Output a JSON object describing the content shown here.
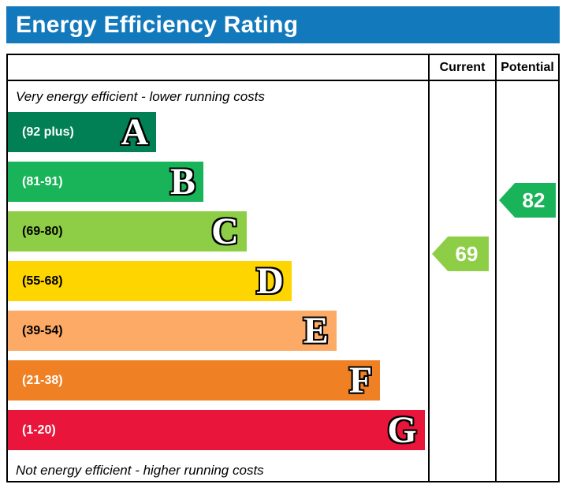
{
  "chart_data": {
    "type": "bar",
    "title": "Energy Efficiency Rating",
    "top_caption": "Very energy efficient - lower running costs",
    "bottom_caption": "Not energy efficient - higher running costs",
    "columns": [
      "Current",
      "Potential"
    ],
    "header_color": "#1279bd",
    "bands": [
      {
        "letter": "A",
        "range": "(92 plus)",
        "min": 92,
        "max": 100,
        "color": "#008054",
        "label_color": "#ffffff",
        "width_pct": 35.3
      },
      {
        "letter": "B",
        "range": "(81-91)",
        "min": 81,
        "max": 91,
        "color": "#19b459",
        "label_color": "#ffffff",
        "width_pct": 46.5
      },
      {
        "letter": "C",
        "range": "(69-80)",
        "min": 69,
        "max": 80,
        "color": "#8dce46",
        "label_color": "#000000",
        "width_pct": 56.8
      },
      {
        "letter": "D",
        "range": "(55-68)",
        "min": 55,
        "max": 68,
        "color": "#ffd500",
        "label_color": "#000000",
        "width_pct": 67.5
      },
      {
        "letter": "E",
        "range": "(39-54)",
        "min": 39,
        "max": 54,
        "color": "#fcaa65",
        "label_color": "#000000",
        "width_pct": 78.2
      },
      {
        "letter": "F",
        "range": "(21-38)",
        "min": 21,
        "max": 38,
        "color": "#ef8023",
        "label_color": "#ffffff",
        "width_pct": 88.6
      },
      {
        "letter": "G",
        "range": "(1-20)",
        "min": 1,
        "max": 20,
        "color": "#e9153b",
        "label_color": "#ffffff",
        "width_pct": 99.2
      }
    ],
    "ratings": {
      "current": {
        "value": 69,
        "band": "C",
        "color": "#8dce46"
      },
      "potential": {
        "value": 82,
        "band": "B",
        "color": "#19b459"
      }
    }
  }
}
